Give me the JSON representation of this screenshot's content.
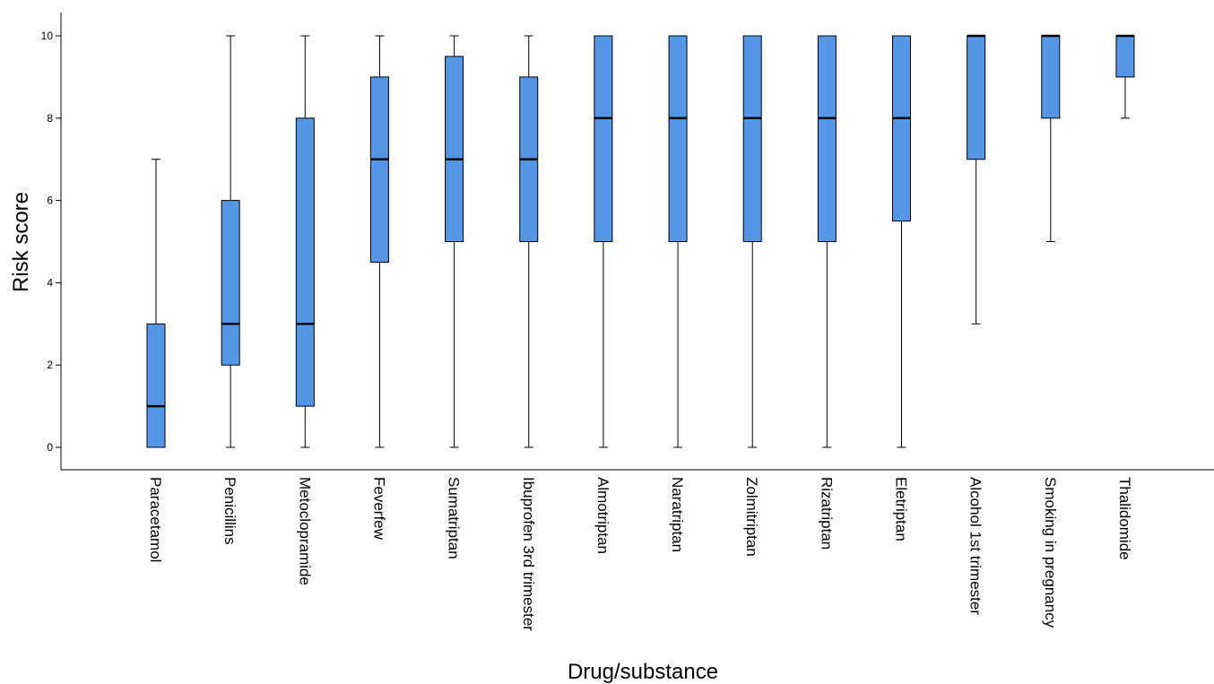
{
  "chart_data": {
    "type": "box",
    "xlabel": "Drug/substance",
    "ylabel": "Risk score",
    "ylim": [
      0,
      10
    ],
    "yticks": [
      0,
      2,
      4,
      6,
      8,
      10
    ],
    "grid": false,
    "box_color": "#5596E6",
    "categories": [
      "Paracetamol",
      "Penicillins",
      "Metoclopramide",
      "Feverfew",
      "Sumatriptan",
      "Ibuprofen 3rd trimester",
      "Almotriptan",
      "Naratriptan",
      "Zolmitriptan",
      "Rizatriptan",
      "Eletriptan",
      "Alcohol 1st trimester",
      "Smoking in pregnancy",
      "Thalidomide"
    ],
    "boxes": [
      {
        "min": 0,
        "q1": 0,
        "median": 1,
        "q3": 3,
        "max": 7
      },
      {
        "min": 0,
        "q1": 2,
        "median": 3,
        "q3": 6,
        "max": 10
      },
      {
        "min": 0,
        "q1": 1,
        "median": 3,
        "q3": 8,
        "max": 10
      },
      {
        "min": 0,
        "q1": 4.5,
        "median": 7,
        "q3": 9,
        "max": 10
      },
      {
        "min": 0,
        "q1": 5,
        "median": 7,
        "q3": 9.5,
        "max": 10
      },
      {
        "min": 0,
        "q1": 5,
        "median": 7,
        "q3": 9,
        "max": 10
      },
      {
        "min": 0,
        "q1": 5,
        "median": 8,
        "q3": 10,
        "max": 10
      },
      {
        "min": 0,
        "q1": 5,
        "median": 8,
        "q3": 10,
        "max": 10
      },
      {
        "min": 0,
        "q1": 5,
        "median": 8,
        "q3": 10,
        "max": 10
      },
      {
        "min": 0,
        "q1": 5,
        "median": 8,
        "q3": 10,
        "max": 10
      },
      {
        "min": 0,
        "q1": 5.5,
        "median": 8,
        "q3": 10,
        "max": 10
      },
      {
        "min": 3,
        "q1": 7,
        "median": 10,
        "q3": 10,
        "max": 10
      },
      {
        "min": 5,
        "q1": 8,
        "median": 10,
        "q3": 10,
        "max": 10
      },
      {
        "min": 8,
        "q1": 9,
        "median": 10,
        "q3": 10,
        "max": 10
      }
    ]
  }
}
